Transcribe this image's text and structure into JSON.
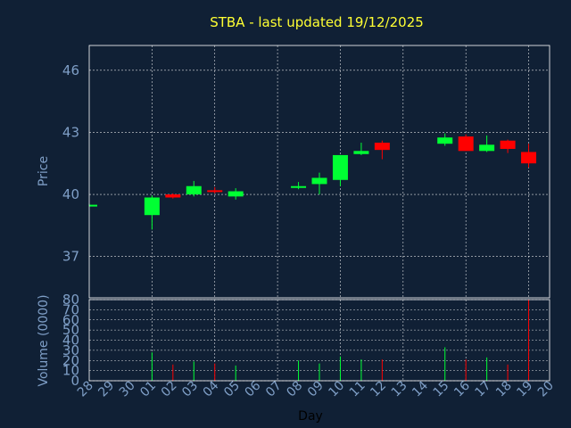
{
  "chart_data": {
    "type": "candlestick",
    "title": "STBA - last updated 19/12/2025",
    "colors": {
      "background": "#102035",
      "up": "#00ff33",
      "down": "#ff0000",
      "title": "#ffff33",
      "axis_text": "#7f9fc7",
      "grid": "#ffffff"
    },
    "price_panel": {
      "ylabel": "Price",
      "ylim": [
        35.0,
        47.2
      ],
      "yticks": [
        "37",
        "40",
        "43",
        "46"
      ],
      "grid": true
    },
    "volume_panel": {
      "ylabel": "Volume (0000)",
      "ylim": [
        0,
        80
      ],
      "yticks": [
        "0",
        "10",
        "20",
        "30",
        "40",
        "50",
        "60",
        "70",
        "80"
      ],
      "grid": true
    },
    "xlabel": "Day",
    "days": [
      "28",
      "29",
      "30",
      "01",
      "02",
      "03",
      "04",
      "05",
      "06",
      "07",
      "08",
      "09",
      "10",
      "11",
      "12",
      "13",
      "14",
      "15",
      "16",
      "17",
      "18",
      "19",
      "20"
    ],
    "candles": [
      {
        "day": "28",
        "open": 39.5,
        "high": 39.55,
        "low": 39.45,
        "close": 39.5,
        "volume": 0
      },
      {
        "day": "01",
        "open": 39.0,
        "high": 39.95,
        "low": 38.3,
        "close": 39.85,
        "volume": 28
      },
      {
        "day": "02",
        "open": 40.0,
        "high": 40.05,
        "low": 39.8,
        "close": 39.85,
        "volume": 16
      },
      {
        "day": "03",
        "open": 40.0,
        "high": 40.65,
        "low": 39.9,
        "close": 40.4,
        "volume": 19
      },
      {
        "day": "04",
        "open": 40.2,
        "high": 40.35,
        "low": 40.05,
        "close": 40.15,
        "volume": 17
      },
      {
        "day": "05",
        "open": 39.9,
        "high": 40.3,
        "low": 39.75,
        "close": 40.15,
        "volume": 15
      },
      {
        "day": "08",
        "open": 40.35,
        "high": 40.6,
        "low": 40.25,
        "close": 40.4,
        "volume": 20
      },
      {
        "day": "09",
        "open": 40.5,
        "high": 41.05,
        "low": 40.0,
        "close": 40.8,
        "volume": 17
      },
      {
        "day": "10",
        "open": 40.7,
        "high": 41.9,
        "low": 40.4,
        "close": 41.9,
        "volume": 24
      },
      {
        "day": "11",
        "open": 41.95,
        "high": 42.5,
        "low": 41.9,
        "close": 42.1,
        "volume": 21
      },
      {
        "day": "12",
        "open": 42.5,
        "high": 42.6,
        "low": 41.7,
        "close": 42.15,
        "volume": 21
      },
      {
        "day": "15",
        "open": 42.45,
        "high": 42.95,
        "low": 42.35,
        "close": 42.75,
        "volume": 33
      },
      {
        "day": "16",
        "open": 42.8,
        "high": 42.9,
        "low": 42.1,
        "close": 42.1,
        "volume": 21
      },
      {
        "day": "17",
        "open": 42.1,
        "high": 42.85,
        "low": 42.05,
        "close": 42.4,
        "volume": 23
      },
      {
        "day": "18",
        "open": 42.6,
        "high": 42.65,
        "low": 42.0,
        "close": 42.2,
        "volume": 16
      },
      {
        "day": "19",
        "open": 42.05,
        "high": 42.45,
        "low": 41.3,
        "close": 41.5,
        "volume": 80
      }
    ]
  }
}
